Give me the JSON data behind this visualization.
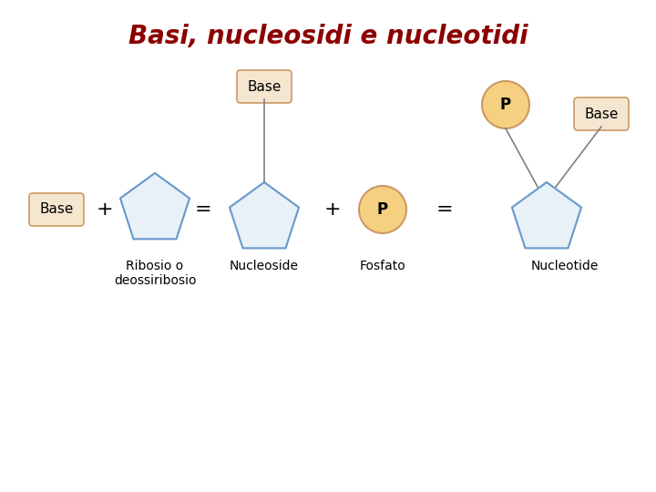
{
  "title": "Basi, nucleosidi e nucleotidi",
  "title_color": "#8B0000",
  "title_fontsize": 20,
  "bg_color": "#ffffff",
  "pentagon_edge_color": "#6699CC",
  "pentagon_face_color": "#E8F0F8",
  "base_box_color": "#F5E6D0",
  "base_box_edge": "#CC9966",
  "phosphate_fill": "#F5D080",
  "phosphate_edge": "#CC9966",
  "labels": {
    "base": "Base",
    "plus1": "+",
    "equals1": "=",
    "plus2": "+",
    "equals2": "=",
    "ribose": "Ribosio o\ndeossiribosio",
    "nucleoside": "Nucleoside",
    "fosfato": "Fosfato",
    "nucleotide": "Nucleotide",
    "p": "P"
  }
}
